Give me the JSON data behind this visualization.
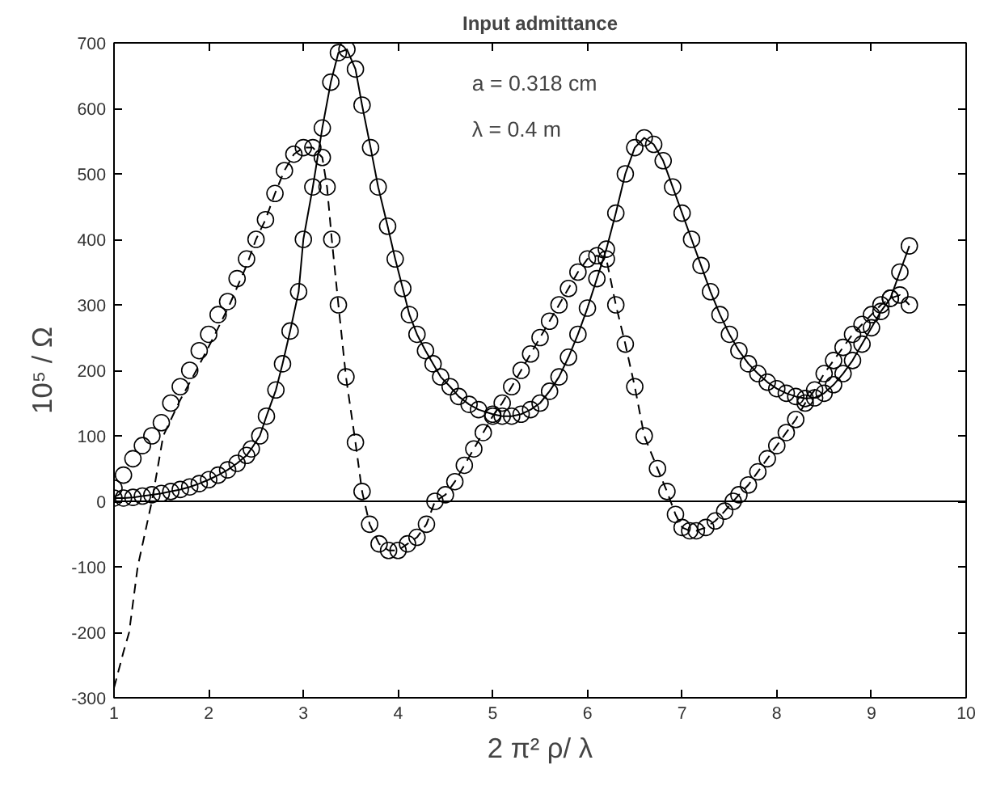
{
  "chart_data": {
    "type": "line",
    "title": "Input admittance",
    "xlabel": "2 π² ρ/ λ",
    "ylabel": "10⁵ / Ω",
    "annotations": [
      "a = 0.318 cm",
      "λ = 0.4 m"
    ],
    "xlim": [
      1,
      10
    ],
    "ylim": [
      -300,
      700
    ],
    "xticks": [
      1,
      2,
      3,
      4,
      5,
      6,
      7,
      8,
      9,
      10
    ],
    "yticks": [
      -300,
      -200,
      -100,
      0,
      100,
      200,
      300,
      400,
      500,
      600,
      700
    ],
    "grid": false,
    "ref_lines": [
      {
        "axis": "y",
        "value": 0,
        "color": "#000000",
        "line_style": "solid"
      }
    ],
    "series": [
      {
        "color": "#000000",
        "line_style": "solid",
        "marker": "circle",
        "x": [
          1.0,
          1.1,
          1.2,
          1.3,
          1.4,
          1.5,
          1.6,
          1.7,
          1.8,
          1.9,
          2.0,
          2.1,
          2.2,
          2.3,
          2.4,
          2.45,
          2.54,
          2.61,
          2.71,
          2.78,
          2.86,
          2.95,
          3.0,
          3.1,
          3.2,
          3.29,
          3.37,
          3.46,
          3.55,
          3.62,
          3.71,
          3.79,
          3.89,
          3.97,
          4.05,
          4.12,
          4.2,
          4.29,
          4.37,
          4.45,
          4.55,
          4.64,
          4.75,
          4.85,
          5.0,
          5.1,
          5.2,
          5.3,
          5.4,
          5.5,
          5.6,
          5.7,
          5.8,
          5.9,
          6.0,
          6.1,
          6.2,
          6.3,
          6.4,
          6.5,
          6.6,
          6.7,
          6.8,
          6.9,
          7.0,
          7.1,
          7.2,
          7.3,
          7.4,
          7.5,
          7.6,
          7.7,
          7.8,
          7.9,
          8.0,
          8.1,
          8.2,
          8.3,
          8.4,
          8.5,
          8.6,
          8.7,
          8.8,
          8.9,
          9.0,
          9.1,
          9.2,
          9.3,
          9.4
        ],
        "values": [
          5,
          5,
          6,
          8,
          10,
          12,
          15,
          18,
          22,
          27,
          33,
          40,
          48,
          58,
          70,
          80,
          100,
          130,
          170,
          210,
          260,
          320,
          400,
          480,
          570,
          640,
          685,
          690,
          660,
          605,
          540,
          480,
          420,
          370,
          325,
          285,
          255,
          230,
          210,
          190,
          175,
          160,
          148,
          140,
          133,
          130,
          130,
          133,
          140,
          150,
          168,
          190,
          220,
          255,
          295,
          340,
          385,
          440,
          500,
          540,
          555,
          545,
          520,
          480,
          440,
          400,
          360,
          320,
          285,
          255,
          230,
          210,
          195,
          182,
          172,
          165,
          160,
          157,
          158,
          165,
          178,
          195,
          215,
          240,
          265,
          290,
          310,
          350,
          390
        ]
      },
      {
        "type": "scatter",
        "color": "#000000",
        "marker": "circle",
        "x": [
          1.0,
          1.1,
          1.2,
          1.3,
          1.4,
          1.5,
          1.6,
          1.7,
          1.8,
          1.9,
          2.0,
          2.1,
          2.2,
          2.3,
          2.4,
          2.5,
          2.6,
          2.7,
          2.8,
          2.9,
          3.0,
          3.1,
          3.2,
          3.25,
          3.3,
          3.37,
          3.45,
          3.55,
          3.62,
          3.7,
          3.8,
          3.9,
          4.0,
          4.1,
          4.2,
          4.3,
          4.39,
          4.5,
          4.6,
          4.7,
          4.8,
          4.9,
          5.0,
          5.1,
          5.2,
          5.3,
          5.4,
          5.5,
          5.6,
          5.7,
          5.8,
          5.9,
          6.0,
          6.1,
          6.2,
          6.3,
          6.4,
          6.5,
          6.6,
          6.74,
          6.84,
          6.93,
          7.0,
          7.08,
          7.15,
          7.25,
          7.35,
          7.45,
          7.54,
          7.6,
          7.7,
          7.8,
          7.9,
          8.0,
          8.1,
          8.2,
          8.3,
          8.4,
          8.5,
          8.6,
          8.7,
          8.8,
          8.9,
          9.0,
          9.1,
          9.2,
          9.3,
          9.4
        ],
        "values": [
          20,
          40,
          65,
          85,
          100,
          120,
          150,
          175,
          200,
          230,
          255,
          285,
          305,
          340,
          370,
          400,
          430,
          470,
          505,
          530,
          540,
          540,
          525,
          480,
          400,
          300,
          190,
          90,
          15,
          -35,
          -65,
          -75,
          -75,
          -65,
          -55,
          -35,
          0,
          10,
          30,
          55,
          80,
          105,
          130,
          150,
          175,
          200,
          225,
          250,
          275,
          300,
          325,
          350,
          370,
          375,
          370,
          300,
          240,
          175,
          100,
          50,
          15,
          -20,
          -40,
          -45,
          -45,
          -40,
          -30,
          -15,
          0,
          10,
          25,
          45,
          65,
          85,
          105,
          125,
          150,
          170,
          195,
          215,
          235,
          255,
          270,
          285,
          300,
          310,
          315,
          300
        ]
      },
      {
        "type": "line",
        "color": "#000000",
        "line_style": "dashed",
        "x": [
          1.0,
          1.1,
          1.16,
          1.25,
          1.4,
          1.52,
          1.7,
          1.87,
          2.05,
          2.22,
          2.4,
          2.5,
          2.6,
          2.7,
          2.8,
          2.9,
          3.0,
          3.1,
          3.2,
          3.25,
          3.3,
          3.37,
          3.45,
          3.55,
          3.62,
          3.7,
          3.8,
          3.9,
          4.0,
          4.1,
          4.2,
          4.3,
          4.39,
          4.5,
          4.6,
          4.7,
          4.8,
          4.9,
          5.0,
          5.1,
          5.2,
          5.3,
          5.4,
          5.5,
          5.6,
          5.7,
          5.8,
          5.9,
          6.0,
          6.1,
          6.2,
          6.3,
          6.4,
          6.5,
          6.6,
          6.74,
          6.84,
          6.93,
          7.0,
          7.08,
          7.15,
          7.25,
          7.35,
          7.45,
          7.54,
          7.6,
          7.7,
          7.8,
          7.9,
          8.0,
          8.1,
          8.2,
          8.3,
          8.4,
          8.5,
          8.6,
          8.7,
          8.8,
          8.9,
          9.0,
          9.1,
          9.2,
          9.3,
          9.4
        ],
        "values": [
          -285,
          -230,
          -200,
          -100,
          0,
          100,
          155,
          200,
          250,
          300,
          360,
          400,
          430,
          470,
          505,
          530,
          540,
          540,
          525,
          480,
          400,
          300,
          190,
          90,
          15,
          -35,
          -65,
          -75,
          -75,
          -65,
          -55,
          -35,
          0,
          10,
          30,
          55,
          80,
          105,
          130,
          150,
          175,
          200,
          225,
          250,
          275,
          300,
          325,
          350,
          370,
          375,
          370,
          300,
          240,
          175,
          100,
          50,
          15,
          -20,
          -40,
          -45,
          -45,
          -40,
          -30,
          -15,
          0,
          10,
          25,
          45,
          65,
          85,
          105,
          125,
          150,
          170,
          195,
          215,
          235,
          255,
          270,
          285,
          300,
          310,
          315,
          300
        ]
      }
    ]
  }
}
